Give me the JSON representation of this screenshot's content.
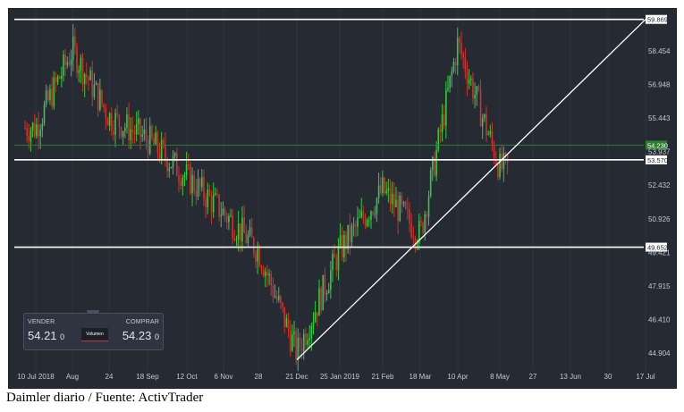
{
  "chart_data": {
    "type": "candlestick",
    "instrument": "Daimler",
    "y_ticks": [
      "58.454",
      "56.948",
      "55.443",
      "53.937",
      "52.432",
      "50.926",
      "49.421",
      "47.915",
      "46.410",
      "44.904"
    ],
    "x_ticks": [
      "10 Jul 2018",
      "Aug",
      "24",
      "18 Sep",
      "12 Oct",
      "6 Nov",
      "28",
      "21 Dec",
      "25 Jan 2019",
      "21 Feb",
      "18 Mar",
      "10 Apr",
      "8 May",
      "27",
      "13 Jun",
      "30",
      "17 Jul"
    ],
    "horizontal_levels": [
      {
        "value": 59.869,
        "label": "59.869",
        "color": "#ffffff"
      },
      {
        "value": 53.57,
        "label": "53.570",
        "color": "#ffffff"
      },
      {
        "value": 49.652,
        "label": "49.652",
        "color": "#ffffff"
      }
    ],
    "current_price": {
      "value": 54.23,
      "label": "54.230",
      "color": "#2e7d32"
    },
    "trendline": {
      "from": {
        "date": "21 Dec",
        "price": 44.6
      },
      "to": {
        "date": "17 Jul",
        "price": 59.869
      }
    },
    "ohlc_path_samples": [
      {
        "date": "10 Jul 2018",
        "price": 55.0
      },
      {
        "date": "Aug",
        "price": 58.5
      },
      {
        "date": "24",
        "price": 55.5
      },
      {
        "date": "18 Sep",
        "price": 54.5
      },
      {
        "date": "12 Oct",
        "price": 52.8
      },
      {
        "date": "6 Nov",
        "price": 51.2
      },
      {
        "date": "28",
        "price": 49.5
      },
      {
        "date": "21 Dec",
        "price": 44.9
      },
      {
        "date": "25 Jan 2019",
        "price": 49.5
      },
      {
        "date": "21 Feb",
        "price": 52.2
      },
      {
        "date": "18 Mar",
        "price": 50.2
      },
      {
        "date": "10 Apr",
        "price": 58.8
      },
      {
        "date": "8 May",
        "price": 53.2
      }
    ],
    "colors": {
      "up": "#2ecc40",
      "down": "#d0312d",
      "background": "#262a33"
    }
  },
  "widget": {
    "sell_label": "VENDER",
    "sell_price_main": "54.21",
    "sell_price_small": "0",
    "buy_label": "COMPRAR",
    "buy_price_main": "54.23",
    "buy_price_small": "0",
    "volume_label": "Volumen"
  },
  "caption": "Daimler diario / Fuente: ActivTrader"
}
